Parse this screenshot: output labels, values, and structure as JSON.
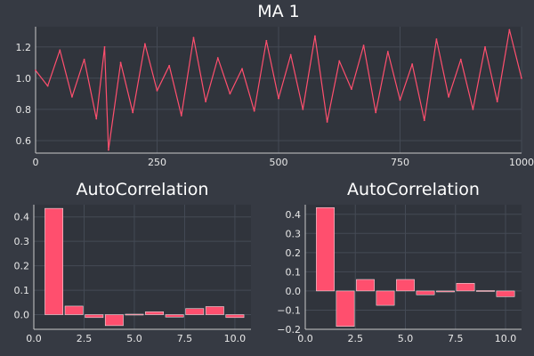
{
  "colors": {
    "background": "#363a43",
    "plot_background": "#30343c",
    "series": "#ff4f6e",
    "text": "#ffffff",
    "grid": "#444a55"
  },
  "chart_data": [
    {
      "type": "line",
      "title": "MA 1",
      "xlabel": "",
      "ylabel": "",
      "xlim": [
        0,
        1000
      ],
      "ylim": [
        0.52,
        1.33
      ],
      "xticks": [
        0,
        250,
        500,
        750,
        1000
      ],
      "xtick_labels": [
        "0",
        "250",
        "500",
        "750",
        "1000"
      ],
      "yticks": [
        0.6,
        0.8,
        1.0,
        1.2
      ],
      "ytick_labels": [
        "0.6",
        "0.8",
        "1.0",
        "1.2"
      ],
      "grid": true,
      "series": [
        {
          "x": [
            0,
            25,
            50,
            75,
            100,
            125,
            142,
            150,
            175,
            200,
            225,
            250,
            275,
            300,
            325,
            350,
            375,
            400,
            425,
            450,
            475,
            500,
            525,
            550,
            575,
            600,
            625,
            650,
            675,
            700,
            725,
            750,
            775,
            800,
            825,
            850,
            875,
            900,
            925,
            950,
            975,
            1000
          ],
          "values": [
            1.05,
            0.95,
            1.18,
            0.88,
            1.12,
            0.74,
            1.2,
            0.54,
            1.1,
            0.78,
            1.22,
            0.92,
            1.08,
            0.76,
            1.26,
            0.85,
            1.13,
            0.9,
            1.06,
            0.79,
            1.24,
            0.87,
            1.15,
            0.8,
            1.27,
            0.72,
            1.11,
            0.93,
            1.21,
            0.78,
            1.17,
            0.86,
            1.09,
            0.73,
            1.25,
            0.88,
            1.12,
            0.8,
            1.2,
            0.85,
            1.31,
            1.0
          ]
        }
      ]
    },
    {
      "type": "bar",
      "title": "AutoCorrelation",
      "xlabel": "",
      "ylabel": "",
      "xlim": [
        0,
        10.8
      ],
      "ylim": [
        -0.06,
        0.45
      ],
      "xticks": [
        0,
        2.5,
        5,
        7.5,
        10
      ],
      "xtick_labels": [
        "0.0",
        "2.5",
        "5.0",
        "7.5",
        "10.0"
      ],
      "yticks": [
        0,
        0.1,
        0.2,
        0.3,
        0.4
      ],
      "ytick_labels": [
        "0.0",
        "0.1",
        "0.2",
        "0.3",
        "0.4"
      ],
      "grid": true,
      "categories": [
        1,
        2,
        3,
        4,
        5,
        6,
        7,
        8,
        9,
        10
      ],
      "values": [
        0.435,
        0.035,
        -0.012,
        -0.045,
        0.002,
        0.012,
        -0.01,
        0.025,
        0.033,
        -0.012
      ]
    },
    {
      "type": "bar",
      "title": "AutoCorrelation",
      "xlabel": "",
      "ylabel": "",
      "xlim": [
        0,
        10.8
      ],
      "ylim": [
        -0.2,
        0.45
      ],
      "xticks": [
        0,
        2.5,
        5,
        7.5,
        10
      ],
      "xtick_labels": [
        "0.0",
        "2.5",
        "5.0",
        "7.5",
        "10.0"
      ],
      "yticks": [
        -0.2,
        -0.1,
        0,
        0.1,
        0.2,
        0.3,
        0.4
      ],
      "ytick_labels": [
        "−0.2",
        "−0.1",
        "0.0",
        "0.1",
        "0.2",
        "0.3",
        "0.4"
      ],
      "grid": true,
      "categories": [
        1,
        2,
        3,
        4,
        5,
        6,
        7,
        8,
        9,
        10
      ],
      "values": [
        0.435,
        -0.185,
        0.06,
        -0.075,
        0.06,
        -0.02,
        -0.005,
        0.04,
        0.002,
        -0.03
      ]
    }
  ]
}
